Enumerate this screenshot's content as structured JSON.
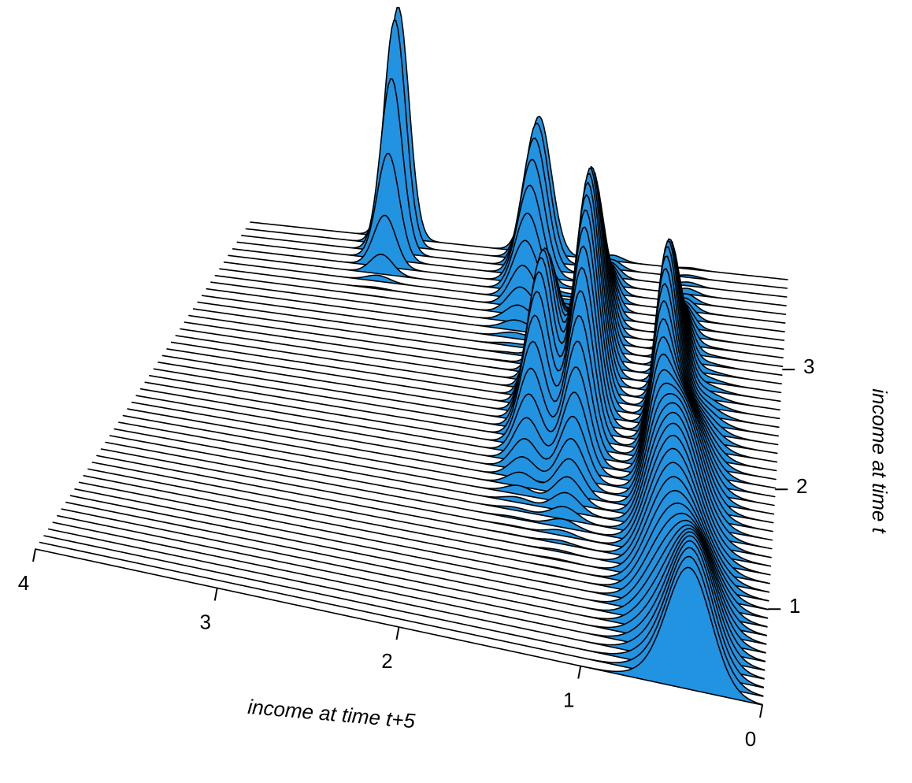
{
  "chart_data": {
    "type": "area",
    "subtype": "3d-perspective-ridgeline",
    "xlabel": "income at time t+5",
    "ylabel": "income at time t",
    "x_axis": {
      "range": [
        0,
        4
      ],
      "ticks": [
        0,
        1,
        2,
        3,
        4
      ],
      "tick_labels": [
        "0",
        "1",
        "2",
        "3",
        "4"
      ]
    },
    "y_axis": {
      "range": [
        0.2,
        3.75
      ],
      "ticks": [
        1,
        2,
        3
      ],
      "tick_labels": [
        "1",
        "2",
        "3"
      ]
    },
    "z_axis": {
      "range": [
        0,
        3.8
      ],
      "drawn": false
    },
    "grid": false,
    "fill_color": "#2293E1",
    "line_color": "#000000",
    "slices": 50,
    "peaks": [
      {
        "x": 0.4,
        "y": 0.25,
        "height": 2.3,
        "width_x": 0.12,
        "width_y": 0.5
      },
      {
        "x": 0.58,
        "y": 1.45,
        "height": 2.1,
        "width_x": 0.13,
        "width_y": 0.55
      },
      {
        "x": 0.72,
        "y": 2.35,
        "height": 2.7,
        "width_x": 0.07,
        "width_y": 0.45
      },
      {
        "x": 1.25,
        "y": 2.3,
        "height": 2.3,
        "width_x": 0.08,
        "width_y": 0.4
      },
      {
        "x": 1.3,
        "y": 2.85,
        "height": 2.2,
        "width_x": 0.07,
        "width_y": 0.35
      },
      {
        "x": 1.55,
        "y": 2.4,
        "height": 2.4,
        "width_x": 0.08,
        "width_y": 0.35
      },
      {
        "x": 1.85,
        "y": 3.7,
        "height": 2.0,
        "width_x": 0.09,
        "width_y": 0.3
      },
      {
        "x": 2.9,
        "y": 3.72,
        "height": 3.4,
        "width_x": 0.08,
        "width_y": 0.15
      }
    ]
  }
}
